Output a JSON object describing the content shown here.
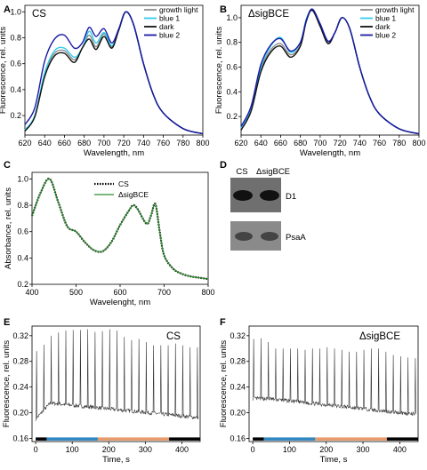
{
  "panel_labels": [
    "A",
    "B",
    "C",
    "D",
    "E",
    "F"
  ],
  "colors": {
    "growth_light": "#8c8c8c",
    "blue_1": "#33ccee",
    "dark": "#111111",
    "blue_2": "#1a1aa6",
    "cs_absorbance": "#000000",
    "sigbce_absorbance": "#2e8b2e",
    "bar_dark": "#000000",
    "bar_blue": "#2f86c0",
    "bar_orange": "#e69a6a"
  },
  "chart_data": [
    {
      "id": "A",
      "type": "line",
      "title": "CS",
      "xlabel": "Wavelength, nm",
      "ylabel": "Fluorescence, rel. units",
      "xlim": [
        620,
        800
      ],
      "ylim": [
        0.05,
        1.05
      ],
      "xticks": [
        "620",
        "640",
        "660",
        "680",
        "700",
        "720",
        "740",
        "760",
        "780",
        "800"
      ],
      "yticks": [
        "0.2",
        "0.4",
        "0.6",
        "0.8",
        "1.0"
      ],
      "legend": "top-right",
      "x": [
        620,
        630,
        640,
        650,
        660,
        670,
        678,
        685,
        692,
        700,
        708,
        715,
        722,
        730,
        740,
        750,
        760,
        780,
        800
      ],
      "series": [
        {
          "name": "growth light",
          "values": [
            0.08,
            0.2,
            0.52,
            0.68,
            0.7,
            0.63,
            0.72,
            0.82,
            0.73,
            0.83,
            0.73,
            0.86,
            1.0,
            0.9,
            0.6,
            0.36,
            0.22,
            0.1,
            0.06
          ]
        },
        {
          "name": "blue 1",
          "values": [
            0.09,
            0.2,
            0.53,
            0.7,
            0.72,
            0.65,
            0.72,
            0.85,
            0.76,
            0.84,
            0.74,
            0.86,
            1.0,
            0.9,
            0.6,
            0.36,
            0.22,
            0.1,
            0.06
          ]
        },
        {
          "name": "dark",
          "values": [
            0.08,
            0.19,
            0.5,
            0.66,
            0.68,
            0.61,
            0.72,
            0.79,
            0.71,
            0.81,
            0.72,
            0.86,
            1.0,
            0.9,
            0.6,
            0.36,
            0.22,
            0.1,
            0.06
          ]
        },
        {
          "name": "blue 2",
          "values": [
            0.13,
            0.26,
            0.62,
            0.79,
            0.82,
            0.72,
            0.76,
            0.88,
            0.81,
            0.87,
            0.76,
            0.87,
            1.0,
            0.9,
            0.6,
            0.36,
            0.22,
            0.1,
            0.06
          ]
        }
      ]
    },
    {
      "id": "B",
      "type": "line",
      "title": "ΔsigBCE",
      "xlabel": "Wavelength, nm",
      "ylabel": "Fluorescence, rel. units",
      "xlim": [
        620,
        800
      ],
      "ylim": [
        0.05,
        1.1
      ],
      "xticks": [
        "620",
        "640",
        "660",
        "680",
        "700",
        "720",
        "740",
        "760",
        "780",
        "800"
      ],
      "yticks": [
        "0.2",
        "0.4",
        "0.6",
        "0.8",
        "1.0"
      ],
      "legend": "top-right",
      "x": [
        620,
        630,
        640,
        650,
        660,
        670,
        680,
        686,
        692,
        700,
        708,
        715,
        722,
        730,
        740,
        750,
        760,
        780,
        800
      ],
      "series": [
        {
          "name": "growth light",
          "values": [
            0.1,
            0.26,
            0.58,
            0.74,
            0.79,
            0.7,
            0.78,
            0.98,
            1.06,
            0.94,
            0.8,
            0.88,
            1.0,
            0.91,
            0.6,
            0.36,
            0.22,
            0.1,
            0.06
          ]
        },
        {
          "name": "blue 1",
          "values": [
            0.11,
            0.27,
            0.6,
            0.77,
            0.84,
            0.72,
            0.8,
            0.99,
            1.06,
            0.95,
            0.81,
            0.88,
            1.0,
            0.91,
            0.6,
            0.36,
            0.22,
            0.1,
            0.06
          ]
        },
        {
          "name": "dark",
          "values": [
            0.09,
            0.24,
            0.56,
            0.72,
            0.77,
            0.68,
            0.77,
            0.97,
            1.06,
            0.93,
            0.79,
            0.88,
            1.0,
            0.91,
            0.6,
            0.36,
            0.22,
            0.1,
            0.06
          ]
        },
        {
          "name": "blue 2",
          "values": [
            0.12,
            0.28,
            0.62,
            0.78,
            0.83,
            0.73,
            0.8,
            0.98,
            1.07,
            0.95,
            0.81,
            0.88,
            1.0,
            0.91,
            0.6,
            0.36,
            0.22,
            0.1,
            0.06
          ]
        }
      ]
    },
    {
      "id": "C",
      "type": "line",
      "title": "",
      "xlabel": "Wavelenght, nm",
      "ylabel": "Absorbance, rel. units",
      "xlim": [
        400,
        800
      ],
      "ylim": [
        0.2,
        1.05
      ],
      "xticks": [
        "400",
        "500",
        "600",
        "700",
        "800"
      ],
      "yticks": [
        "0.2",
        "0.4",
        "0.6",
        "0.8",
        "1.0"
      ],
      "legend": "top-right",
      "x": [
        400,
        420,
        440,
        460,
        480,
        500,
        520,
        540,
        560,
        580,
        600,
        620,
        630,
        640,
        660,
        670,
        680,
        690,
        700,
        720,
        740,
        760,
        780,
        800
      ],
      "series": [
        {
          "name": "CS",
          "values": [
            0.72,
            0.9,
            1.0,
            0.82,
            0.64,
            0.6,
            0.52,
            0.46,
            0.45,
            0.52,
            0.65,
            0.76,
            0.8,
            0.77,
            0.66,
            0.72,
            0.81,
            0.6,
            0.42,
            0.32,
            0.28,
            0.26,
            0.25,
            0.24
          ]
        },
        {
          "name": "ΔsigBCE",
          "values": [
            0.72,
            0.9,
            1.0,
            0.82,
            0.64,
            0.6,
            0.52,
            0.46,
            0.45,
            0.52,
            0.65,
            0.76,
            0.8,
            0.77,
            0.66,
            0.72,
            0.81,
            0.6,
            0.42,
            0.32,
            0.28,
            0.26,
            0.25,
            0.24
          ]
        }
      ]
    },
    {
      "id": "E",
      "type": "line",
      "title": "CS",
      "xlabel": "Time, s",
      "ylabel": "Fluorescence, rel. units",
      "xlim": [
        -10,
        450
      ],
      "ylim": [
        0.155,
        0.335
      ],
      "xticks": [
        "0",
        "100",
        "200",
        "300",
        "400"
      ],
      "yticks": [
        "0.16",
        "0.20",
        "0.24",
        "0.28",
        "0.32"
      ],
      "baseline": {
        "start": 0.19,
        "peak": 0.215,
        "end": 0.192
      },
      "pulse_times": [
        2,
        22,
        42,
        62,
        82,
        102,
        122,
        142,
        162,
        182,
        202,
        222,
        242,
        262,
        282,
        302,
        322,
        342,
        362,
        382,
        402,
        422,
        442
      ],
      "pulse_peaks": [
        0.296,
        0.306,
        0.32,
        0.325,
        0.328,
        0.329,
        0.329,
        0.33,
        0.326,
        0.327,
        0.33,
        0.328,
        0.318,
        0.313,
        0.315,
        0.31,
        0.305,
        0.305,
        0.305,
        0.308,
        0.305,
        0.302,
        0.302
      ],
      "light_bar": [
        {
          "phase": "dark",
          "from": 0,
          "to": 30
        },
        {
          "phase": "blue",
          "from": 30,
          "to": 170
        },
        {
          "phase": "orange",
          "from": 170,
          "to": 365
        },
        {
          "phase": "dark",
          "from": 365,
          "to": 450
        }
      ]
    },
    {
      "id": "F",
      "type": "line",
      "title": "ΔsigBCE",
      "xlabel": "Time, s",
      "ylabel": "Fluorescence, rel. units",
      "xlim": [
        -10,
        450
      ],
      "ylim": [
        0.155,
        0.335
      ],
      "xticks": [
        "0",
        "100",
        "200",
        "300",
        "400"
      ],
      "yticks": [
        "0.16",
        "0.20",
        "0.24",
        "0.28",
        "0.32"
      ],
      "baseline": {
        "start": 0.222,
        "peak": 0.222,
        "end": 0.197
      },
      "pulse_times": [
        2,
        22,
        42,
        62,
        82,
        102,
        122,
        142,
        162,
        182,
        202,
        222,
        242,
        262,
        282,
        302,
        322,
        342,
        362,
        382,
        402,
        422,
        442
      ],
      "pulse_peaks": [
        0.315,
        0.316,
        0.31,
        0.3,
        0.3,
        0.3,
        0.3,
        0.298,
        0.3,
        0.3,
        0.302,
        0.3,
        0.298,
        0.295,
        0.295,
        0.298,
        0.3,
        0.3,
        0.295,
        0.29,
        0.288,
        0.286,
        0.285
      ],
      "light_bar": [
        {
          "phase": "dark",
          "from": 0,
          "to": 30
        },
        {
          "phase": "blue",
          "from": 30,
          "to": 170
        },
        {
          "phase": "orange",
          "from": 170,
          "to": 365
        },
        {
          "phase": "dark",
          "from": 365,
          "to": 450
        }
      ]
    }
  ],
  "blot": {
    "lanes": [
      "CS",
      "ΔsigBCE"
    ],
    "bands": [
      "D1",
      "PsaA"
    ]
  }
}
